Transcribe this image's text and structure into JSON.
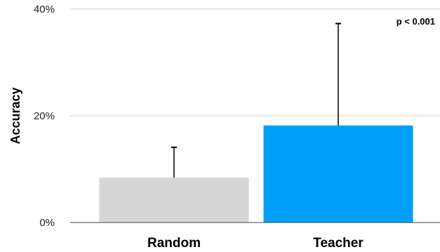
{
  "chart_data": {
    "type": "bar",
    "title": "",
    "xlabel": "",
    "ylabel": "Accuracy",
    "ylim": [
      0,
      40
    ],
    "yticks": [
      0,
      20,
      40
    ],
    "ytick_labels": [
      "0%",
      "20%",
      "40%"
    ],
    "categories": [
      "Random",
      "Teacher"
    ],
    "values": [
      8.4,
      18.2
    ],
    "error_upper": [
      14.1,
      37.3
    ],
    "colors": [
      "#d6d6d6",
      "#00a0fa"
    ],
    "grid": "horizontal",
    "annotation": "p < 0.001"
  }
}
